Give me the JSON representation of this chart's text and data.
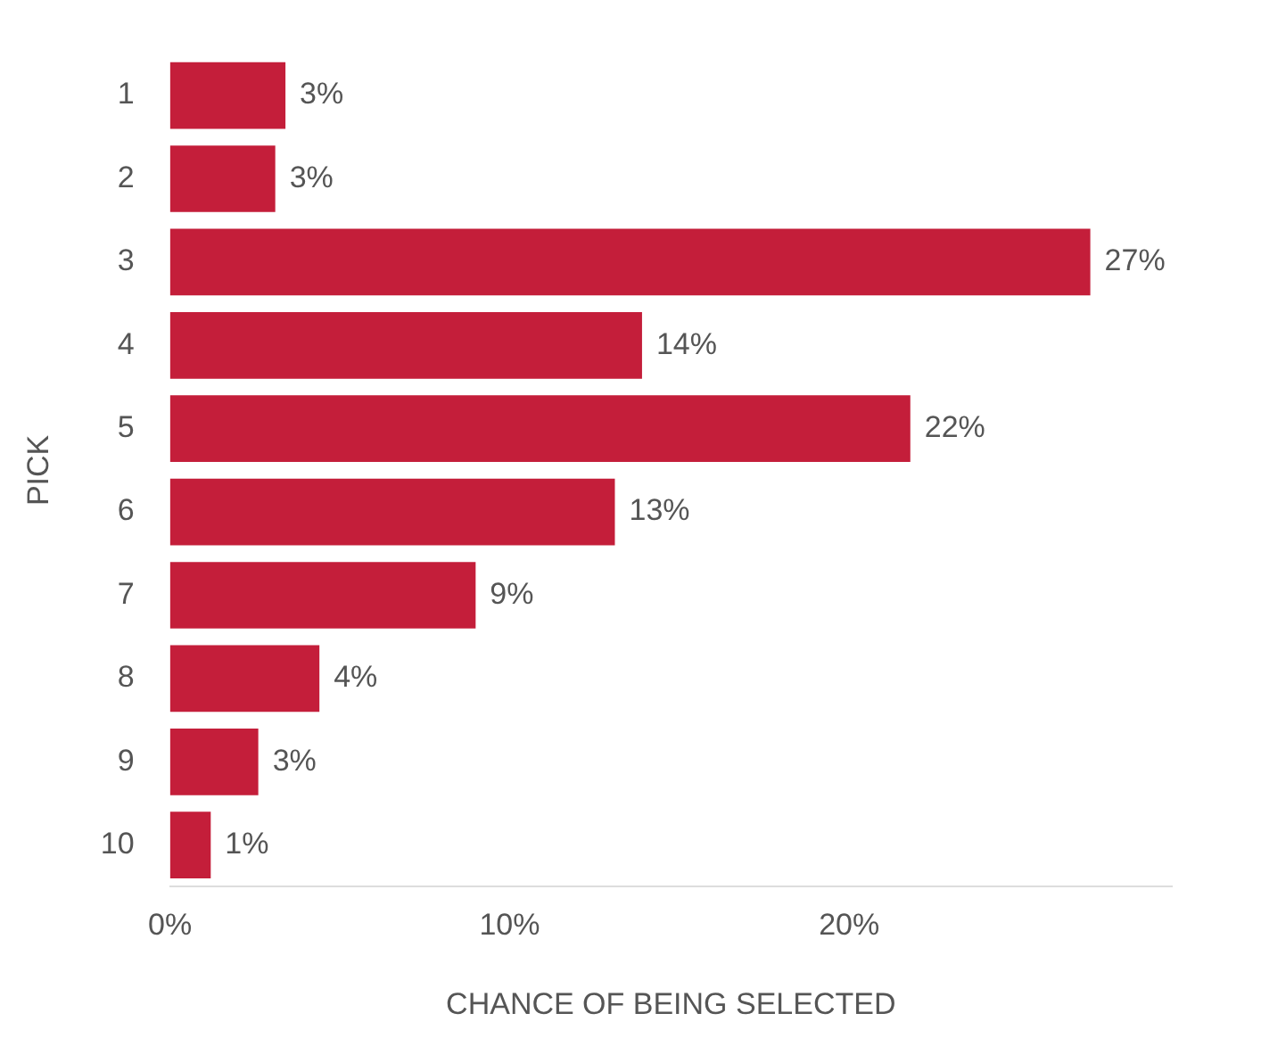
{
  "chart_data": {
    "type": "bar",
    "orientation": "horizontal",
    "xlabel": "CHANCE OF BEING SELECTED",
    "ylabel": "PICK",
    "categories": [
      "1",
      "2",
      "3",
      "4",
      "5",
      "6",
      "7",
      "8",
      "9",
      "10"
    ],
    "values": [
      3.4,
      3.1,
      27.1,
      13.9,
      21.8,
      13.1,
      9.0,
      4.4,
      2.6,
      1.2
    ],
    "value_labels": [
      "3%",
      "3%",
      "27%",
      "14%",
      "22%",
      "13%",
      "9%",
      "4%",
      "3%",
      "1%"
    ],
    "color": "#c41e3a",
    "xlim": [
      0,
      29.5
    ],
    "xticks": [
      {
        "value": 0,
        "label": "0%"
      },
      {
        "value": 10,
        "label": "10%"
      },
      {
        "value": 20,
        "label": "20%"
      }
    ],
    "grid": false,
    "legend": false
  }
}
